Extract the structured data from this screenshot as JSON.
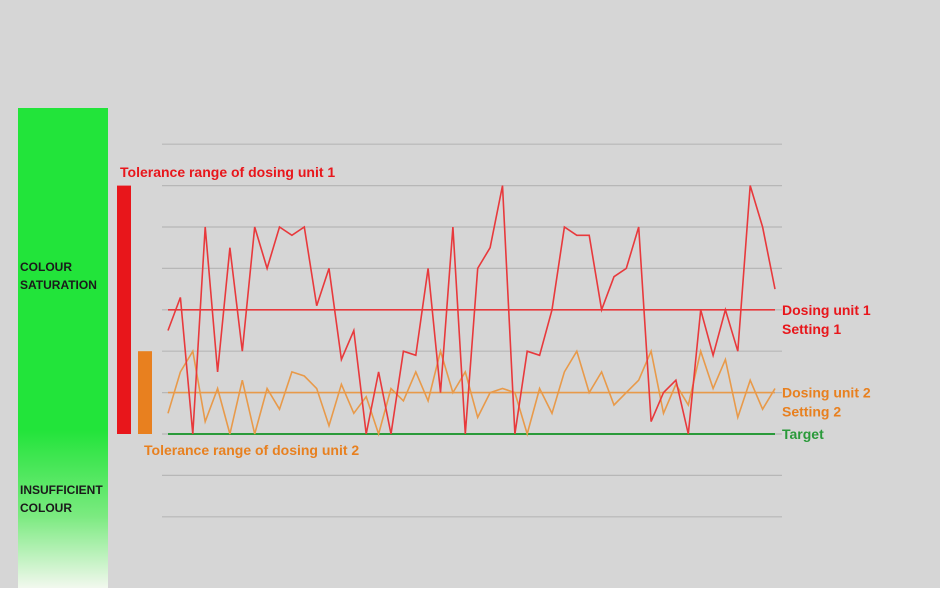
{
  "colors": {
    "background": "#d6d6d6",
    "green_bar": "#22e43a",
    "red": "#e8161b",
    "red_line": "#e8393c",
    "orange": "#e8801f",
    "orange_line": "#e89a4a",
    "target": "#2a9a3a",
    "grid": "#b7b7b7",
    "text_dark": "#1a1a1a"
  },
  "side_bar": {
    "top_label": "COLOUR\nSATURATION",
    "bottom_label": "INSUFFICIENT\nCOLOUR"
  },
  "tolerance_labels": {
    "unit1": "Tolerance range of dosing unit 1",
    "unit2": "Tolerance range of dosing unit 2"
  },
  "chart_data": {
    "type": "line",
    "title": "",
    "xlabel": "",
    "ylabel": "",
    "grid": true,
    "gridlines": [
      -2,
      -1,
      0,
      1,
      2,
      3,
      4,
      5,
      6,
      7
    ],
    "ylim": [
      -2.3,
      7.5
    ],
    "xlim": [
      0,
      50
    ],
    "reference_lines": [
      {
        "name": "Dosing unit 1",
        "secondary": "Setting 1",
        "value": 3,
        "color": "#e8393c"
      },
      {
        "name": "Dosing unit 2",
        "secondary": "Setting 2",
        "value": 1,
        "color": "#e89a4a"
      },
      {
        "name": "Target",
        "value": 0,
        "color": "#2a9a3a"
      }
    ],
    "tolerance_bars": [
      {
        "unit": 1,
        "from": 0,
        "to": 6
      },
      {
        "unit": 2,
        "from": 0,
        "to": 2
      }
    ],
    "series": [
      {
        "color": "#e8393c",
        "values": [
          2.5,
          3.3,
          0.0,
          5.0,
          1.5,
          4.5,
          2.0,
          5.0,
          4.0,
          5.0,
          4.8,
          5.0,
          3.1,
          4.0,
          1.8,
          2.5,
          0.0,
          1.5,
          0.0,
          2.0,
          1.9,
          4.0,
          1.0,
          5.0,
          0.0,
          4.0,
          4.5,
          6.0,
          0.0,
          2.0,
          1.9,
          3.0,
          5.0,
          4.8,
          4.8,
          3.0,
          3.8,
          4.0,
          5.0,
          0.3,
          1.0,
          1.3,
          0.0,
          3.0,
          1.9,
          3.0,
          2.0,
          6.0,
          5.0,
          3.5
        ]
      },
      {
        "color": "#e89a4a",
        "values": [
          0.5,
          1.5,
          2.0,
          0.3,
          1.1,
          0.0,
          1.3,
          0.0,
          1.1,
          0.6,
          1.5,
          1.4,
          1.1,
          0.2,
          1.2,
          0.5,
          0.9,
          0.0,
          1.1,
          0.8,
          1.5,
          0.8,
          2.0,
          1.0,
          1.5,
          0.4,
          1.0,
          1.1,
          1.0,
          0.0,
          1.1,
          0.5,
          1.5,
          2.0,
          1.0,
          1.5,
          0.7,
          1.0,
          1.3,
          2.0,
          0.5,
          1.2,
          0.7,
          2.0,
          1.1,
          1.8,
          0.4,
          1.3,
          0.6,
          1.1
        ]
      }
    ]
  }
}
